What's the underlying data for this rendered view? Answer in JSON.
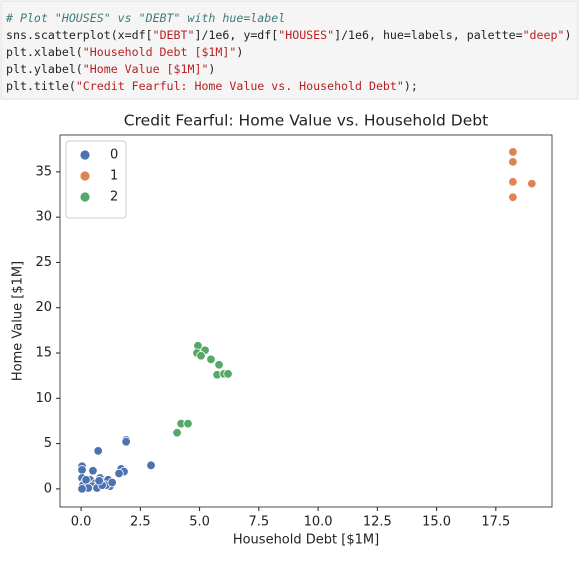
{
  "code": {
    "lines": [
      [
        "# Plot \"HOUSES\" vs \"DEBT\" with hue=label"
      ],
      [
        "sns.scatterplot(x=df[",
        "\"DEBT\"",
        "]/1e6, y=df[",
        "\"HOUSES\"",
        "]/1e6, hue=labels, palette=",
        "\"deep\"",
        ")"
      ],
      [
        "plt.xlabel(",
        "\"Household Debt [$1M]\"",
        ")"
      ],
      [
        "plt.ylabel(",
        "\"Home Value [$1M]\"",
        ")"
      ],
      [
        "plt.title(",
        "\"Credit Fearful: Home Value vs. Household Debt\"",
        ");"
      ]
    ]
  },
  "chart_data": {
    "type": "scatter",
    "title": "Credit Fearful: Home Value vs. Household Debt",
    "xlabel": "Household Debt [$1M]",
    "ylabel": "Home Value [$1M]",
    "xlim": [
      -0.89,
      19.87
    ],
    "ylim": [
      -2.0,
      39.07
    ],
    "xticks": [
      {
        "value": 0,
        "label": "0.0"
      },
      2.5,
      {
        "value": 5,
        "label": "5.0"
      },
      7.5,
      {
        "value": 10,
        "label": "10.0"
      },
      12.5,
      {
        "value": 15,
        "label": "15.0"
      },
      17.5
    ],
    "yticks": [
      0,
      5,
      10,
      15,
      20,
      25,
      30,
      35
    ],
    "legend": "upper left",
    "series": [
      {
        "name": "0",
        "color": "#4c72b0",
        "x": [
          1.9,
          1.9,
          0.72,
          2.95,
          1.69,
          1.81,
          1.6,
          0.04,
          0.04,
          0.5,
          0.04,
          0.17,
          0.3,
          0.38,
          0.59,
          0.8,
          0.97,
          1.14,
          1.22,
          1.05,
          0.04,
          0.08,
          0.21,
          0.46,
          0.67,
          0.89,
          0.76,
          1.31,
          0.3,
          0.04
        ],
        "values": [
          5.4,
          5.2,
          4.2,
          2.6,
          2.2,
          1.9,
          1.7,
          2.5,
          2.1,
          2.0,
          1.2,
          0.8,
          0.3,
          1.0,
          0.6,
          1.2,
          0.8,
          1.0,
          0.3,
          0.4,
          0.2,
          0.4,
          1.0,
          0.3,
          0.1,
          0.4,
          0.9,
          0.7,
          0.1,
          0.0
        ]
      },
      {
        "name": "1",
        "color": "#dd8452",
        "x": [
          18.22,
          18.22,
          18.22,
          19.02,
          18.22
        ],
        "values": [
          37.2,
          36.1,
          33.9,
          33.7,
          32.2
        ]
      },
      {
        "name": "2",
        "color": "#55a868",
        "x": [
          4.93,
          5.23,
          4.89,
          5.06,
          5.48,
          5.82,
          5.74,
          6.03,
          6.2,
          4.22,
          4.51,
          4.05
        ],
        "values": [
          15.8,
          15.3,
          15.0,
          14.7,
          14.3,
          13.7,
          12.6,
          12.7,
          12.7,
          7.2,
          7.2,
          6.2
        ]
      }
    ]
  }
}
